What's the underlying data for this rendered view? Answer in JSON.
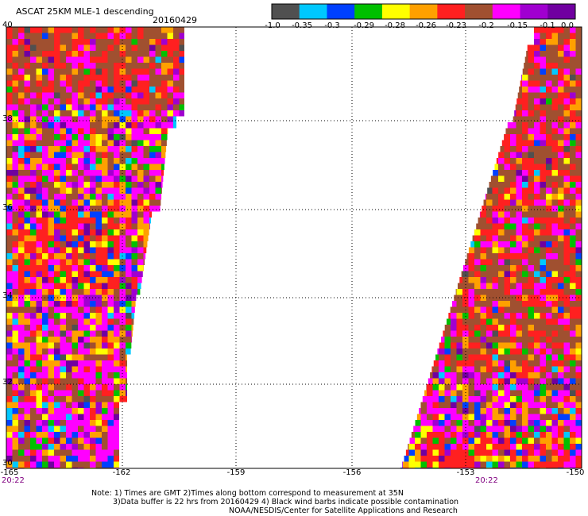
{
  "header": {
    "title": "ASCAT 25KM MLE-1 descending",
    "date": "20160429"
  },
  "colorbar": {
    "tick_labels": [
      "-1.0",
      "-0.35",
      "-0.3",
      "-0.29",
      "-0.28",
      "-0.26",
      "-0.23",
      "-0.2",
      "-0.15",
      "-0.1",
      "0.0"
    ],
    "colors": [
      "#505050",
      "#00c8ff",
      "#0040ff",
      "#00c000",
      "#ffff00",
      "#ffa000",
      "#ff2020",
      "#a05030",
      "#ff00ff",
      "#a000d0",
      "#7000a0"
    ]
  },
  "map": {
    "lat_labels": [
      "40",
      "38",
      "36",
      "34",
      "32",
      "30"
    ],
    "lon_labels": [
      "-165",
      "-162",
      "-159",
      "-156",
      "-153",
      "-150"
    ],
    "times": {
      "left": "20:22",
      "right": "20:22"
    }
  },
  "notes": {
    "line1": "Note: 1) Times are GMT 2)Times along bottom correspond to measurement at 35N",
    "line2": "3)Data buffer is 22 hrs from 20160429 4) Black wind barbs indicate possible contamination",
    "line3": "NOAA/NESDIS/Center for Satellite Applications and Research"
  }
}
